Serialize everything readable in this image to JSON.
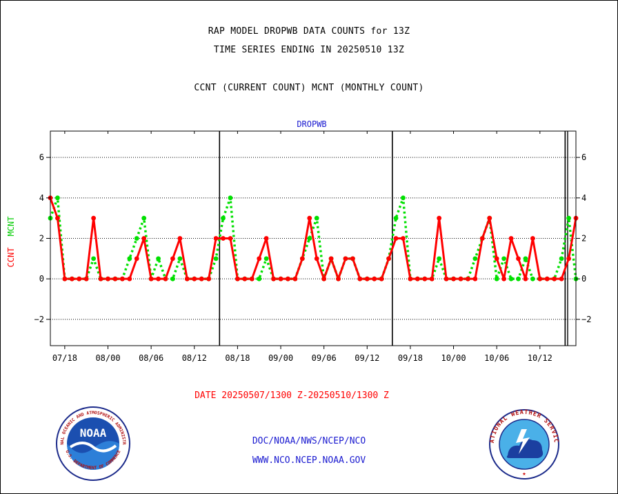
{
  "header": {
    "line1": "RAP MODEL DROPWB DATA COUNTS for 13Z",
    "line2": "TIME SERIES ENDING IN 20250510 13Z",
    "line3": "CCNT (CURRENT COUNT) MCNT (MONTHLY COUNT)"
  },
  "chart_data": {
    "type": "line",
    "title": "DROPWB",
    "ylabel_ccnt": "CCNT",
    "ylabel_mcnt": "MCNT",
    "ylim": [
      -3.3,
      7.3
    ],
    "yticks": [
      -2,
      0,
      2,
      4,
      6
    ],
    "grid": true,
    "x_tick_labels": [
      "07/18",
      "08/00",
      "08/06",
      "08/12",
      "08/18",
      "09/00",
      "09/06",
      "09/12",
      "09/18",
      "10/00",
      "10/06",
      "10/12"
    ],
    "series": [
      {
        "name": "CCNT",
        "color": "#ff0000",
        "values": [
          4,
          3,
          0,
          0,
          0,
          0,
          3,
          0,
          0,
          0,
          0,
          0,
          1,
          2,
          0,
          0,
          0,
          1,
          2,
          0,
          0,
          0,
          0,
          2,
          2,
          2,
          0,
          0,
          0,
          1,
          2,
          0,
          0,
          0,
          0,
          1,
          3,
          1,
          0,
          1,
          0,
          1,
          1,
          0,
          0,
          0,
          0,
          1,
          2,
          2,
          0,
          0,
          0,
          0,
          3,
          0,
          0,
          0,
          0,
          0,
          2,
          3,
          1,
          0,
          2,
          1,
          0,
          2,
          0,
          0,
          0,
          0,
          1,
          3
        ]
      },
      {
        "name": "MCNT",
        "color": "#00e000",
        "values": [
          3,
          4,
          0,
          0,
          0,
          0,
          1,
          0,
          0,
          0,
          0,
          1,
          2,
          3,
          0,
          1,
          0,
          0,
          1,
          0,
          0,
          0,
          0,
          1,
          3,
          4,
          0,
          0,
          0,
          0,
          1,
          0,
          0,
          0,
          0,
          1,
          2,
          3,
          0,
          1,
          0,
          1,
          1,
          0,
          0,
          0,
          0,
          1,
          3,
          4,
          0,
          0,
          0,
          0,
          1,
          0,
          0,
          0,
          0,
          1,
          2,
          3,
          0,
          1,
          0,
          0,
          1,
          0,
          0,
          0,
          0,
          1,
          3,
          0
        ]
      }
    ],
    "day_boundaries_after_point": [
      23,
      47,
      71
    ]
  },
  "footer": {
    "date_range": "DATE 20250507/1300 Z-20250510/1300 Z",
    "org_path": "DOC/NOAA/NWS/NCEP/NCO",
    "website": "WWW.NCO.NCEP.NOAA.GOV"
  },
  "logos": {
    "noaa_text": "NOAA",
    "noaa_ring": "NATIONAL OCEANIC AND ATMOSPHERIC ADMINISTRATION",
    "noaa_ring_bottom": "U.S. DEPARTMENT OF COMMERCE",
    "nws_ring": "NATIONAL WEATHER SERVICE"
  }
}
